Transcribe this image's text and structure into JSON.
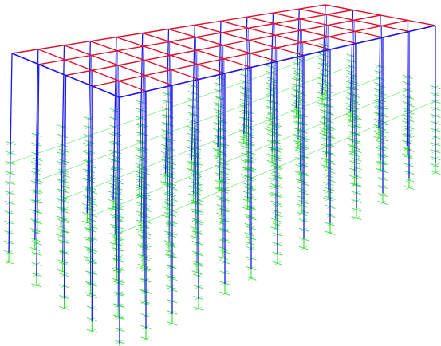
{
  "model": {
    "grid": {
      "bays_long": 12,
      "bays_short": 4
    },
    "pile_rows": 5,
    "pile_cols": 13,
    "colors": {
      "beams": "#e0102c",
      "columns": "#1c1cf0",
      "piles": "#33dd33",
      "background": "#ffffff"
    }
  }
}
